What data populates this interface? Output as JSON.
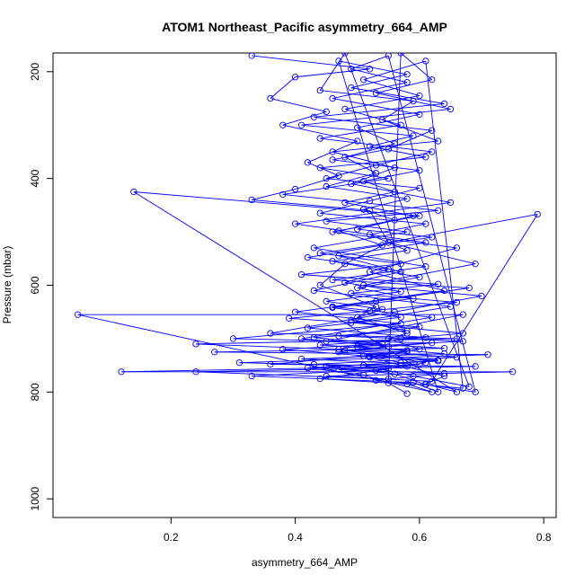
{
  "chart_data": {
    "type": "scatter",
    "title": "ATOM1 Northeast_Pacific asymmetry_664_AMP",
    "xlabel": "asymmetry_664_AMP",
    "ylabel": "Pressure (mbar)",
    "xlim": [
      0.01,
      0.82
    ],
    "ylim": [
      1035,
      165
    ],
    "y_reversed": true,
    "x_ticks": [
      0.2,
      0.4,
      0.6,
      0.8
    ],
    "x_tick_labels": [
      "0.2",
      "0.4",
      "0.6",
      "0.8"
    ],
    "y_ticks": [
      200,
      400,
      600,
      800,
      1000
    ],
    "y_tick_labels": [
      "200",
      "400",
      "600",
      "800",
      "1000"
    ],
    "grid": false,
    "legend": "none",
    "series": [
      {
        "color": "#0000ff",
        "marker": "open-circle",
        "line": true,
        "points": [
          [
            0.33,
            170
          ],
          [
            0.52,
            195
          ],
          [
            0.4,
            210
          ],
          [
            0.36,
            250
          ],
          [
            0.45,
            275
          ],
          [
            0.38,
            300
          ],
          [
            0.5,
            330
          ],
          [
            0.42,
            370
          ],
          [
            0.47,
            395
          ],
          [
            0.4,
            420
          ],
          [
            0.33,
            440
          ],
          [
            0.52,
            460
          ],
          [
            0.55,
            520
          ],
          [
            0.48,
            560
          ],
          [
            0.44,
            600
          ],
          [
            0.53,
            640
          ],
          [
            0.5,
            660
          ],
          [
            0.58,
            690
          ],
          [
            0.55,
            700
          ],
          [
            0.6,
            720
          ],
          [
            0.52,
            735
          ],
          [
            0.57,
            750
          ],
          [
            0.64,
            770
          ],
          [
            0.61,
            785
          ],
          [
            0.66,
            800
          ],
          [
            0.14,
            425
          ],
          [
            0.6,
            470
          ],
          [
            0.46,
            500
          ],
          [
            0.66,
            530
          ],
          [
            0.52,
            575
          ],
          [
            0.64,
            610
          ],
          [
            0.46,
            640
          ],
          [
            0.62,
            660
          ],
          [
            0.41,
            700
          ],
          [
            0.55,
            715
          ],
          [
            0.47,
            725
          ],
          [
            0.63,
            740
          ],
          [
            0.51,
            750
          ],
          [
            0.59,
            770
          ],
          [
            0.68,
            790
          ],
          [
            0.48,
            165
          ],
          [
            0.44,
            235
          ],
          [
            0.59,
            255
          ],
          [
            0.54,
            290
          ],
          [
            0.63,
            330
          ],
          [
            0.46,
            350
          ],
          [
            0.56,
            380
          ],
          [
            0.49,
            410
          ],
          [
            0.65,
            445
          ],
          [
            0.4,
            485
          ],
          [
            0.61,
            520
          ],
          [
            0.47,
            545
          ],
          [
            0.57,
            575
          ],
          [
            0.43,
            610
          ],
          [
            0.65,
            640
          ],
          [
            0.49,
            670
          ],
          [
            0.67,
            690
          ],
          [
            0.57,
            700
          ],
          [
            0.47,
            720
          ],
          [
            0.61,
            745
          ],
          [
            0.53,
            760
          ],
          [
            0.44,
            775
          ],
          [
            0.58,
            785
          ],
          [
            0.62,
            800
          ],
          [
            0.05,
            655
          ],
          [
            0.67,
            655
          ],
          [
            0.45,
            705
          ],
          [
            0.64,
            718
          ],
          [
            0.27,
            725
          ],
          [
            0.71,
            730
          ],
          [
            0.31,
            745
          ],
          [
            0.58,
            752
          ],
          [
            0.12,
            762
          ],
          [
            0.75,
            762
          ],
          [
            0.45,
            770
          ],
          [
            0.62,
            780
          ],
          [
            0.79,
            467
          ],
          [
            0.55,
            520
          ],
          [
            0.69,
            560
          ],
          [
            0.51,
            600
          ],
          [
            0.7,
            620
          ],
          [
            0.56,
            650
          ],
          [
            0.36,
            690
          ],
          [
            0.66,
            700
          ],
          [
            0.24,
            710
          ],
          [
            0.58,
            725
          ],
          [
            0.36,
            748
          ],
          [
            0.69,
            752
          ],
          [
            0.24,
            762
          ],
          [
            0.55,
            776
          ],
          [
            0.57,
            165
          ],
          [
            0.62,
            215
          ],
          [
            0.53,
            240
          ],
          [
            0.65,
            270
          ],
          [
            0.41,
            300
          ],
          [
            0.59,
            320
          ],
          [
            0.52,
            340
          ],
          [
            0.61,
            360
          ],
          [
            0.44,
            380
          ],
          [
            0.55,
            400
          ],
          [
            0.38,
            430
          ],
          [
            0.63,
            460
          ],
          [
            0.45,
            480
          ],
          [
            0.58,
            500
          ],
          [
            0.43,
            530
          ],
          [
            0.61,
            565
          ],
          [
            0.46,
            590
          ],
          [
            0.68,
            605
          ],
          [
            0.53,
            630
          ],
          [
            0.4,
            650
          ],
          [
            0.57,
            672
          ],
          [
            0.3,
            700
          ],
          [
            0.62,
            708
          ],
          [
            0.48,
            722
          ],
          [
            0.66,
            735
          ],
          [
            0.43,
            748
          ],
          [
            0.55,
            757
          ],
          [
            0.33,
            770
          ],
          [
            0.59,
            782
          ],
          [
            0.63,
            800
          ],
          [
            0.47,
            180
          ],
          [
            0.58,
            205
          ],
          [
            0.49,
            230
          ],
          [
            0.64,
            260
          ],
          [
            0.43,
            285
          ],
          [
            0.62,
            310
          ],
          [
            0.55,
            345
          ],
          [
            0.46,
            365
          ],
          [
            0.6,
            385
          ],
          [
            0.51,
            405
          ],
          [
            0.56,
            425
          ],
          [
            0.48,
            445
          ],
          [
            0.59,
            470
          ],
          [
            0.5,
            495
          ],
          [
            0.62,
            510
          ],
          [
            0.44,
            540
          ],
          [
            0.57,
            560
          ],
          [
            0.41,
            580
          ],
          [
            0.63,
            598
          ],
          [
            0.49,
            615
          ],
          [
            0.66,
            632
          ],
          [
            0.52,
            648
          ],
          [
            0.39,
            662
          ],
          [
            0.6,
            678
          ],
          [
            0.47,
            695
          ],
          [
            0.67,
            705
          ],
          [
            0.5,
            715
          ],
          [
            0.64,
            728
          ],
          [
            0.41,
            738
          ],
          [
            0.6,
            748
          ],
          [
            0.47,
            758
          ],
          [
            0.64,
            765
          ],
          [
            0.53,
            778
          ],
          [
            0.67,
            793
          ],
          [
            0.61,
            180
          ],
          [
            0.51,
            215
          ],
          [
            0.6,
            245
          ],
          [
            0.48,
            270
          ],
          [
            0.57,
            300
          ],
          [
            0.44,
            325
          ],
          [
            0.62,
            350
          ],
          [
            0.53,
            375
          ],
          [
            0.45,
            400
          ],
          [
            0.6,
            418
          ],
          [
            0.52,
            442
          ],
          [
            0.44,
            465
          ],
          [
            0.61,
            485
          ],
          [
            0.52,
            505
          ],
          [
            0.58,
            535
          ],
          [
            0.46,
            555
          ],
          [
            0.6,
            585
          ],
          [
            0.5,
            605
          ],
          [
            0.59,
            625
          ],
          [
            0.46,
            642
          ],
          [
            0.57,
            660
          ],
          [
            0.42,
            680
          ],
          [
            0.61,
            698
          ],
          [
            0.44,
            712
          ],
          [
            0.58,
            722
          ],
          [
            0.51,
            732
          ],
          [
            0.63,
            742
          ],
          [
            0.45,
            752
          ],
          [
            0.56,
            766
          ],
          [
            0.61,
            786
          ],
          [
            0.69,
            800
          ],
          [
            0.55,
            170
          ],
          [
            0.49,
            195
          ],
          [
            0.58,
            220
          ],
          [
            0.46,
            250
          ],
          [
            0.6,
            280
          ],
          [
            0.5,
            305
          ],
          [
            0.56,
            335
          ],
          [
            0.48,
            360
          ],
          [
            0.53,
            390
          ],
          [
            0.45,
            415
          ],
          [
            0.58,
            438
          ],
          [
            0.51,
            458
          ],
          [
            0.56,
            478
          ],
          [
            0.47,
            498
          ],
          [
            0.54,
            525
          ],
          [
            0.42,
            548
          ],
          [
            0.55,
            570
          ],
          [
            0.48,
            595
          ],
          [
            0.57,
            612
          ],
          [
            0.45,
            630
          ],
          [
            0.54,
            645
          ],
          [
            0.49,
            665
          ],
          [
            0.58,
            685
          ],
          [
            0.43,
            698
          ],
          [
            0.54,
            710
          ],
          [
            0.38,
            720
          ],
          [
            0.52,
            733
          ],
          [
            0.57,
            745
          ],
          [
            0.42,
            755
          ],
          [
            0.51,
            768
          ],
          [
            0.55,
            783
          ],
          [
            0.58,
            803
          ]
        ]
      }
    ]
  }
}
